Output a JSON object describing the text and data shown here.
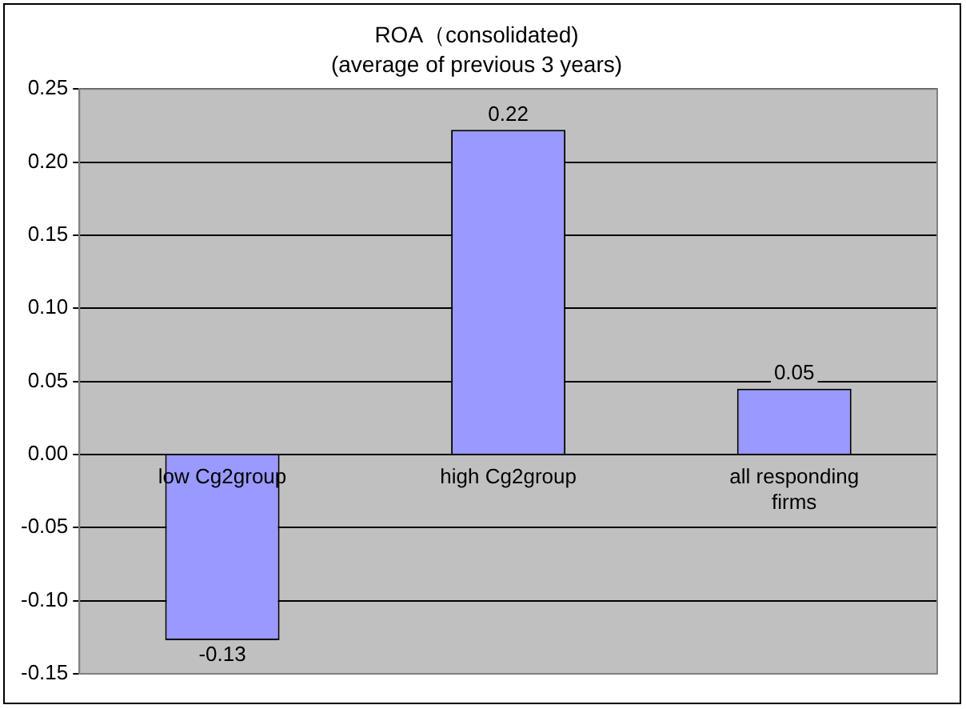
{
  "chart_data": {
    "type": "bar",
    "title": "ROA（consolidated)",
    "subtitle": "(average of previous 3 years)",
    "categories": [
      "low Cg2group",
      "high Cg2group",
      "all responding firms"
    ],
    "values": [
      -0.127,
      0.222,
      0.045
    ],
    "color": "#9999ff",
    "value_labels": [
      "-0.13",
      "0.22",
      "0.05"
    ],
    "ylim": [
      -0.15,
      0.25
    ],
    "yticks": [
      {
        "value": -0.15,
        "label": "-0.15"
      },
      {
        "value": -0.1,
        "label": "-0.10"
      },
      {
        "value": -0.05,
        "label": "-0.05"
      },
      {
        "value": 0,
        "label": "0.00"
      },
      {
        "value": 0.05,
        "label": "0.05"
      },
      {
        "value": 0.1,
        "label": "0.10"
      },
      {
        "value": 0.15,
        "label": "0.15"
      },
      {
        "value": 0.2,
        "label": "0.20"
      },
      {
        "value": 0.25,
        "label": "0.25"
      }
    ],
    "grid": "y",
    "legend": false
  }
}
